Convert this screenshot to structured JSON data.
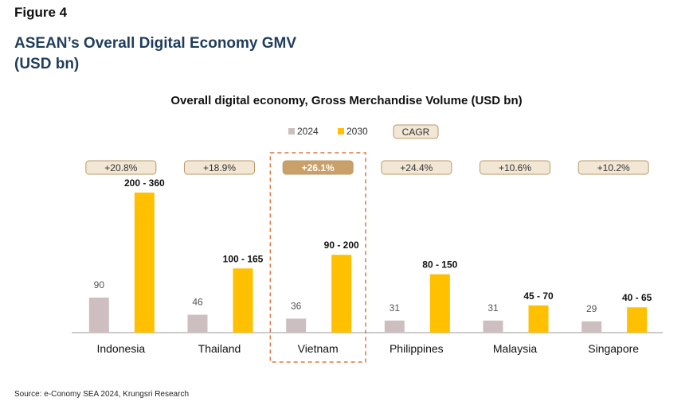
{
  "figure_label": "Figure 4",
  "figure_title_line1": "ASEAN’s Overall Digital Economy GMV",
  "figure_title_line2": "(USD bn)",
  "source": "Source: e-Conomy SEA 2024, Krungsri Research",
  "colors": {
    "bar_2024": "#cdbfbf",
    "bar_2030": "#ffc000",
    "cagr_fill": "#f2e6d4",
    "cagr_stroke": "#b99a68",
    "cagr_highlight_fill": "#c9a06a",
    "highlight_border": "#d9784a",
    "title_blue": "#1f3d5c"
  },
  "chart_data": {
    "type": "bar",
    "title": "Overall digital economy, Gross Merchandise Volume (USD bn)",
    "categories": [
      "Indonesia",
      "Thailand",
      "Vietnam",
      "Philippines",
      "Malaysia",
      "Singapore"
    ],
    "series": [
      {
        "name": "2024",
        "values": [
          90,
          46,
          36,
          31,
          31,
          29
        ],
        "labels": [
          "90",
          "46",
          "36",
          "31",
          "31",
          "29"
        ]
      },
      {
        "name": "2030",
        "values": [
          360,
          165,
          200,
          150,
          70,
          65
        ],
        "labels": [
          "200 - 360",
          "100 - 165",
          "90 - 200",
          "80 - 150",
          "45 - 70",
          "40 - 65"
        ]
      }
    ],
    "cagr_legend": "CAGR",
    "cagr": [
      "+20.8%",
      "+18.9%",
      "+26.1%",
      "+24.4%",
      "+10.6%",
      "+10.2%"
    ],
    "highlight_category": "Vietnam",
    "legend_position": "top-center",
    "ylim": [
      0,
      380
    ],
    "grid": false
  }
}
